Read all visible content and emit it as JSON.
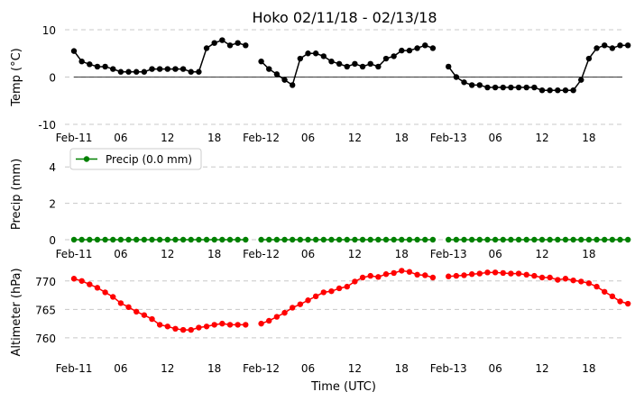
{
  "figure": {
    "title": "Hoko 02/11/18 - 02/13/18",
    "xlabel": "Time (UTC)",
    "x_tick_labels": [
      "Feb-11",
      "06",
      "12",
      "18",
      "Feb-12",
      "06",
      "12",
      "18",
      "Feb-13",
      "06",
      "12",
      "18"
    ]
  },
  "chart_data": [
    {
      "type": "line",
      "ylabel": "Temp (°C)",
      "ylim": [
        -10,
        10
      ],
      "yticks": [
        -10,
        0,
        10
      ],
      "grid": "horizontal-dashed",
      "zero_line": true,
      "color": "#000000",
      "x_hours_start": 0,
      "x_step_hours": 1,
      "values": [
        5.5,
        3.3,
        2.7,
        2.2,
        2.2,
        1.7,
        1.1,
        1.1,
        1.1,
        1.1,
        1.7,
        1.7,
        1.7,
        1.7,
        1.7,
        1.1,
        1.1,
        6.1,
        7.2,
        7.8,
        6.7,
        7.2,
        6.7,
        null,
        3.3,
        1.7,
        0.6,
        -0.6,
        -1.7,
        3.9,
        5.0,
        5.0,
        4.4,
        3.3,
        2.8,
        2.2,
        2.8,
        2.2,
        2.8,
        2.2,
        3.9,
        4.4,
        5.6,
        5.6,
        6.1,
        6.7,
        6.1,
        null,
        2.2,
        0.0,
        -1.1,
        -1.7,
        -1.7,
        -2.2,
        -2.2,
        -2.2,
        -2.2,
        -2.2,
        -2.2,
        -2.2,
        -2.8,
        -2.8,
        -2.8,
        -2.8,
        -2.8,
        -0.6,
        3.9,
        6.1,
        6.7,
        6.1,
        6.7,
        6.7
      ]
    },
    {
      "type": "line",
      "ylabel": "Precip (mm)",
      "ylim": [
        0,
        5
      ],
      "yticks": [
        0,
        2,
        4
      ],
      "grid": "horizontal-dashed",
      "legend": "Precip (0.0 mm)",
      "legend_position": "top-left",
      "color": "#008000",
      "x_hours_start": 0,
      "x_step_hours": 1,
      "values": [
        0,
        0,
        0,
        0,
        0,
        0,
        0,
        0,
        0,
        0,
        0,
        0,
        0,
        0,
        0,
        0,
        0,
        0,
        0,
        0,
        0,
        0,
        0,
        null,
        0,
        0,
        0,
        0,
        0,
        0,
        0,
        0,
        0,
        0,
        0,
        0,
        0,
        0,
        0,
        0,
        0,
        0,
        0,
        0,
        0,
        0,
        0,
        null,
        0,
        0,
        0,
        0,
        0,
        0,
        0,
        0,
        0,
        0,
        0,
        0,
        0,
        0,
        0,
        0,
        0,
        0,
        0,
        0,
        0,
        0,
        0,
        0
      ]
    },
    {
      "type": "line",
      "ylabel": "Altimeter (hPa)",
      "ylim": [
        756.5,
        772.5
      ],
      "yticks": [
        760,
        765,
        770
      ],
      "grid": "horizontal-dashed",
      "color": "#ff0000",
      "x_hours_start": 0,
      "x_step_hours": 1,
      "values": [
        770.4,
        770.0,
        769.4,
        768.8,
        768.0,
        767.2,
        766.1,
        765.4,
        764.6,
        764.0,
        763.3,
        762.3,
        762.0,
        761.6,
        761.4,
        761.4,
        761.8,
        762.0,
        762.3,
        762.5,
        762.3,
        762.3,
        762.3,
        null,
        762.5,
        763.0,
        763.7,
        764.4,
        765.3,
        765.9,
        766.6,
        767.3,
        768.0,
        768.2,
        768.7,
        769.0,
        769.9,
        770.6,
        770.9,
        770.7,
        771.2,
        771.4,
        771.8,
        771.6,
        771.1,
        771.0,
        770.6,
        null,
        770.8,
        770.9,
        771.0,
        771.2,
        771.3,
        771.5,
        771.5,
        771.4,
        771.3,
        771.3,
        771.1,
        770.9,
        770.6,
        770.6,
        770.2,
        770.4,
        770.1,
        769.9,
        769.6,
        769.0,
        768.1,
        767.3,
        766.4,
        766.0
      ]
    }
  ],
  "colors": {
    "grid": "#c8c8c8",
    "temp": "#000000",
    "precip": "#008000",
    "altimeter": "#ff0000"
  }
}
